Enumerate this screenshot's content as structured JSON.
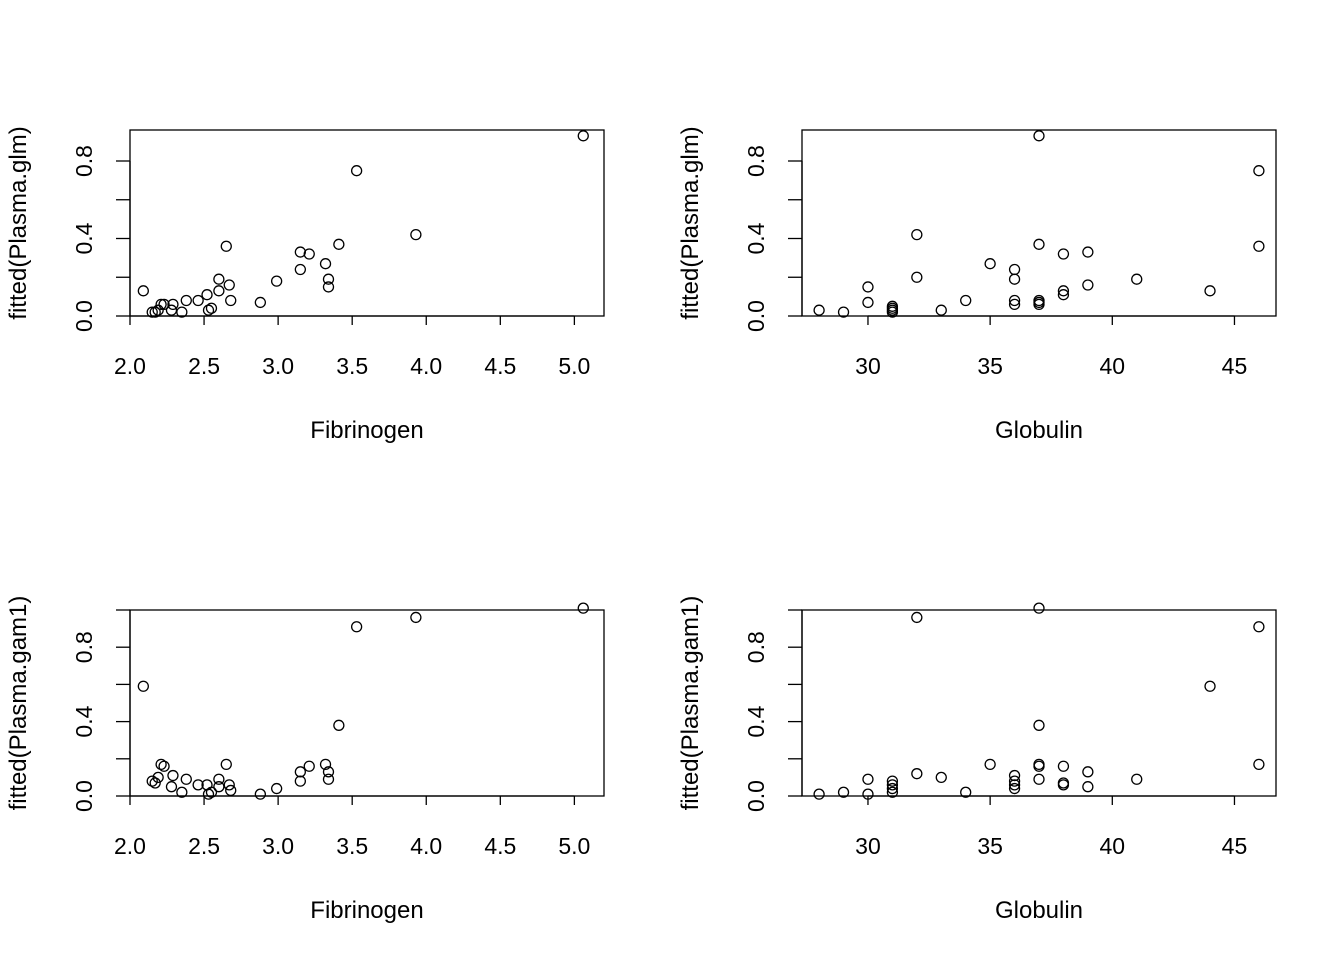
{
  "chart_data": [
    {
      "type": "scatter",
      "xlabel": "Fibrinogen",
      "ylabel": "fitted(Plasma.glm)",
      "xlim": [
        2.0,
        5.2
      ],
      "ylim": [
        0.0,
        0.96
      ],
      "xticks": [
        "2.0",
        "2.5",
        "3.0",
        "3.5",
        "4.0",
        "4.5",
        "5.0"
      ],
      "yticks": [
        "0.0",
        "0.4",
        "0.8"
      ],
      "x": [
        2.09,
        2.15,
        2.17,
        2.19,
        2.21,
        2.23,
        2.28,
        2.29,
        2.35,
        2.38,
        2.46,
        2.52,
        2.53,
        2.55,
        2.6,
        2.6,
        2.65,
        2.67,
        2.68,
        2.88,
        2.99,
        3.15,
        3.15,
        3.21,
        3.32,
        3.34,
        3.34,
        3.41,
        3.53,
        3.93,
        5.06
      ],
      "y": [
        0.13,
        0.02,
        0.02,
        0.03,
        0.06,
        0.06,
        0.03,
        0.06,
        0.02,
        0.08,
        0.08,
        0.11,
        0.03,
        0.04,
        0.13,
        0.19,
        0.36,
        0.16,
        0.08,
        0.07,
        0.18,
        0.33,
        0.24,
        0.32,
        0.27,
        0.19,
        0.15,
        0.37,
        0.75,
        0.42,
        0.93
      ]
    },
    {
      "type": "scatter",
      "xlabel": "Globulin",
      "ylabel": "fitted(Plasma.glm)",
      "xlim": [
        27.3,
        46.7
      ],
      "ylim": [
        0.0,
        0.96
      ],
      "xticks": [
        "30",
        "35",
        "40",
        "45"
      ],
      "yticks": [
        "0.0",
        "0.4",
        "0.8"
      ],
      "x": [
        28,
        29,
        30,
        30,
        31,
        31,
        31,
        32,
        32,
        33,
        34,
        35,
        36,
        36,
        36,
        36,
        37,
        37,
        37,
        37,
        37,
        38,
        38,
        38,
        39,
        39,
        41,
        44,
        46,
        46,
        31
      ],
      "y": [
        0.03,
        0.02,
        0.15,
        0.07,
        0.05,
        0.03,
        0.02,
        0.42,
        0.2,
        0.03,
        0.08,
        0.27,
        0.24,
        0.19,
        0.08,
        0.06,
        0.93,
        0.37,
        0.08,
        0.06,
        0.07,
        0.32,
        0.13,
        0.11,
        0.33,
        0.16,
        0.19,
        0.13,
        0.75,
        0.36,
        0.04
      ]
    },
    {
      "type": "scatter",
      "xlabel": "Fibrinogen",
      "ylabel": "fitted(Plasma.gam1)",
      "xlim": [
        2.0,
        5.2
      ],
      "ylim": [
        0.0,
        1.0
      ],
      "xticks": [
        "2.0",
        "2.5",
        "3.0",
        "3.5",
        "4.0",
        "4.5",
        "5.0"
      ],
      "yticks": [
        "0.0",
        "0.4",
        "0.8"
      ],
      "x": [
        2.09,
        2.15,
        2.17,
        2.19,
        2.21,
        2.23,
        2.28,
        2.29,
        2.35,
        2.38,
        2.46,
        2.52,
        2.53,
        2.55,
        2.6,
        2.6,
        2.65,
        2.67,
        2.68,
        2.88,
        2.99,
        3.15,
        3.15,
        3.21,
        3.32,
        3.34,
        3.34,
        3.41,
        3.53,
        3.93,
        5.06
      ],
      "y": [
        0.59,
        0.08,
        0.07,
        0.1,
        0.17,
        0.16,
        0.05,
        0.11,
        0.02,
        0.09,
        0.06,
        0.06,
        0.01,
        0.02,
        0.09,
        0.05,
        0.17,
        0.06,
        0.03,
        0.01,
        0.04,
        0.13,
        0.08,
        0.16,
        0.17,
        0.13,
        0.09,
        0.38,
        0.91,
        0.96,
        1.01
      ]
    },
    {
      "type": "scatter",
      "xlabel": "Globulin",
      "ylabel": "fitted(Plasma.gam1)",
      "xlim": [
        27.3,
        46.7
      ],
      "ylim": [
        0.0,
        1.0
      ],
      "xticks": [
        "30",
        "35",
        "40",
        "45"
      ],
      "yticks": [
        "0.0",
        "0.4",
        "0.8"
      ],
      "x": [
        28,
        29,
        30,
        30,
        31,
        31,
        31,
        31,
        32,
        32,
        33,
        34,
        35,
        36,
        36,
        36,
        36,
        37,
        37,
        37,
        37,
        37,
        38,
        38,
        38,
        39,
        39,
        41,
        44,
        46,
        46
      ],
      "y": [
        0.01,
        0.02,
        0.09,
        0.01,
        0.08,
        0.06,
        0.04,
        0.02,
        0.96,
        0.12,
        0.1,
        0.02,
        0.17,
        0.11,
        0.08,
        0.06,
        0.04,
        1.01,
        0.38,
        0.17,
        0.16,
        0.09,
        0.16,
        0.07,
        0.06,
        0.13,
        0.05,
        0.09,
        0.59,
        0.91,
        0.17
      ]
    }
  ]
}
